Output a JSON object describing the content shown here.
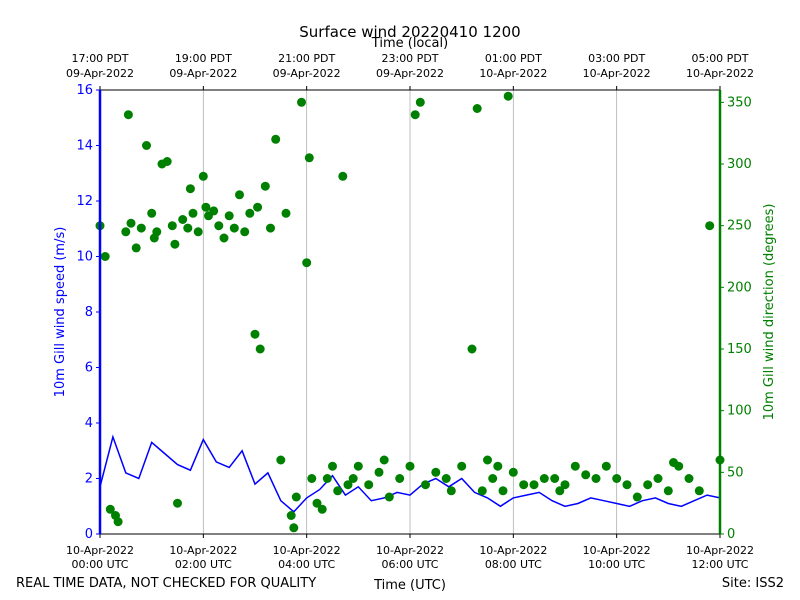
{
  "chart_data": {
    "type": "line+scatter",
    "title": "Surface wind 20220410 1200",
    "top_axis_label": "Time (local)",
    "xlabel": "Time (UTC)",
    "ylabel_left": "10m Gill wind speed (m/s)",
    "ylabel_right": "10m Gill wind direction (degrees)",
    "x_range_hours_utc": [
      0,
      12
    ],
    "ylim_left": [
      0,
      16
    ],
    "ylim_right": [
      0,
      360
    ],
    "left_ticks": [
      0,
      2,
      4,
      6,
      8,
      10,
      12,
      14,
      16
    ],
    "right_ticks": [
      0,
      50,
      100,
      150,
      200,
      250,
      300,
      350
    ],
    "grid": "vertical",
    "colors": {
      "speed": "#0000ff",
      "direction": "#008000",
      "grid": "#b0b0b0"
    },
    "bottom_ticks": [
      {
        "hour": 0,
        "line1": "10-Apr-2022",
        "line2": "00:00 UTC"
      },
      {
        "hour": 2,
        "line1": "10-Apr-2022",
        "line2": "02:00 UTC"
      },
      {
        "hour": 4,
        "line1": "10-Apr-2022",
        "line2": "04:00 UTC"
      },
      {
        "hour": 6,
        "line1": "10-Apr-2022",
        "line2": "06:00 UTC"
      },
      {
        "hour": 8,
        "line1": "10-Apr-2022",
        "line2": "08:00 UTC"
      },
      {
        "hour": 10,
        "line1": "10-Apr-2022",
        "line2": "10:00 UTC"
      },
      {
        "hour": 12,
        "line1": "10-Apr-2022",
        "line2": "12:00 UTC"
      }
    ],
    "top_ticks": [
      {
        "hour": 0,
        "line1": "17:00 PDT",
        "line2": "09-Apr-2022"
      },
      {
        "hour": 2,
        "line1": "19:00 PDT",
        "line2": "09-Apr-2022"
      },
      {
        "hour": 4,
        "line1": "21:00 PDT",
        "line2": "09-Apr-2022"
      },
      {
        "hour": 6,
        "line1": "23:00 PDT",
        "line2": "09-Apr-2022"
      },
      {
        "hour": 8,
        "line1": "01:00 PDT",
        "line2": "10-Apr-2022"
      },
      {
        "hour": 10,
        "line1": "03:00 PDT",
        "line2": "10-Apr-2022"
      },
      {
        "hour": 12,
        "line1": "05:00 PDT",
        "line2": "10-Apr-2022"
      }
    ],
    "series": [
      {
        "name": "wind speed",
        "axis": "left",
        "style": "line",
        "x": [
          0,
          0.25,
          0.5,
          0.75,
          1,
          1.25,
          1.5,
          1.75,
          2,
          2.25,
          2.5,
          2.75,
          3,
          3.25,
          3.5,
          3.75,
          4,
          4.25,
          4.5,
          4.75,
          5,
          5.25,
          5.5,
          5.75,
          6,
          6.25,
          6.5,
          6.75,
          7,
          7.25,
          7.5,
          7.75,
          8,
          8.25,
          8.5,
          8.75,
          9,
          9.25,
          9.5,
          9.75,
          10,
          10.25,
          10.5,
          10.75,
          11,
          11.25,
          11.5,
          11.75,
          12
        ],
        "values": [
          1.7,
          3.5,
          2.2,
          2.0,
          3.3,
          2.9,
          2.5,
          2.3,
          3.4,
          2.6,
          2.4,
          3.0,
          1.8,
          2.2,
          1.2,
          0.8,
          1.3,
          1.6,
          2.1,
          1.4,
          1.7,
          1.2,
          1.3,
          1.5,
          1.4,
          1.8,
          2.0,
          1.7,
          2.0,
          1.5,
          1.3,
          1.0,
          1.3,
          1.4,
          1.5,
          1.2,
          1.0,
          1.1,
          1.3,
          1.2,
          1.1,
          1.0,
          1.2,
          1.3,
          1.1,
          1.0,
          1.2,
          1.4,
          1.3
        ]
      },
      {
        "name": "wind direction",
        "axis": "right",
        "style": "scatter",
        "x": [
          0,
          0.1,
          0.2,
          0.3,
          0.35,
          0.5,
          0.55,
          0.6,
          0.7,
          0.8,
          0.9,
          1.0,
          1.05,
          1.1,
          1.2,
          1.3,
          1.4,
          1.45,
          1.5,
          1.6,
          1.7,
          1.75,
          1.8,
          1.9,
          2.0,
          2.05,
          2.1,
          2.2,
          2.3,
          2.4,
          2.5,
          2.6,
          2.7,
          2.8,
          2.9,
          3.0,
          3.05,
          3.1,
          3.2,
          3.3,
          3.4,
          3.5,
          3.6,
          3.7,
          3.75,
          3.8,
          3.9,
          4.0,
          4.05,
          4.1,
          4.2,
          4.3,
          4.4,
          4.5,
          4.6,
          4.7,
          4.8,
          4.9,
          5.0,
          5.2,
          5.4,
          5.5,
          5.6,
          5.8,
          6.0,
          6.1,
          6.2,
          6.3,
          6.5,
          6.7,
          6.8,
          7.0,
          7.2,
          7.3,
          7.4,
          7.5,
          7.6,
          7.7,
          7.8,
          7.9,
          8.0,
          8.2,
          8.4,
          8.6,
          8.8,
          8.9,
          9.0,
          9.2,
          9.4,
          9.6,
          9.8,
          10.0,
          10.2,
          10.4,
          10.6,
          10.8,
          11.0,
          11.1,
          11.2,
          11.4,
          11.6,
          11.8,
          12.0
        ],
        "values": [
          250,
          225,
          20,
          15,
          10,
          245,
          340,
          252,
          232,
          248,
          315,
          260,
          240,
          245,
          300,
          302,
          250,
          235,
          25,
          255,
          248,
          280,
          260,
          245,
          290,
          265,
          258,
          262,
          250,
          240,
          258,
          248,
          275,
          245,
          260,
          162,
          265,
          150,
          282,
          248,
          320,
          60,
          260,
          15,
          5,
          30,
          350,
          220,
          305,
          45,
          25,
          20,
          45,
          55,
          35,
          290,
          40,
          45,
          55,
          40,
          50,
          60,
          30,
          45,
          55,
          340,
          350,
          40,
          50,
          45,
          35,
          55,
          150,
          345,
          35,
          60,
          45,
          55,
          35,
          355,
          50,
          40,
          40,
          45,
          45,
          35,
          40,
          55,
          48,
          45,
          55,
          45,
          40,
          30,
          40,
          45,
          35,
          58,
          55,
          45,
          35,
          250,
          60
        ]
      }
    ]
  },
  "footer": {
    "disclaimer": "REAL TIME DATA, NOT CHECKED FOR QUALITY",
    "site": "Site: ISS2"
  }
}
